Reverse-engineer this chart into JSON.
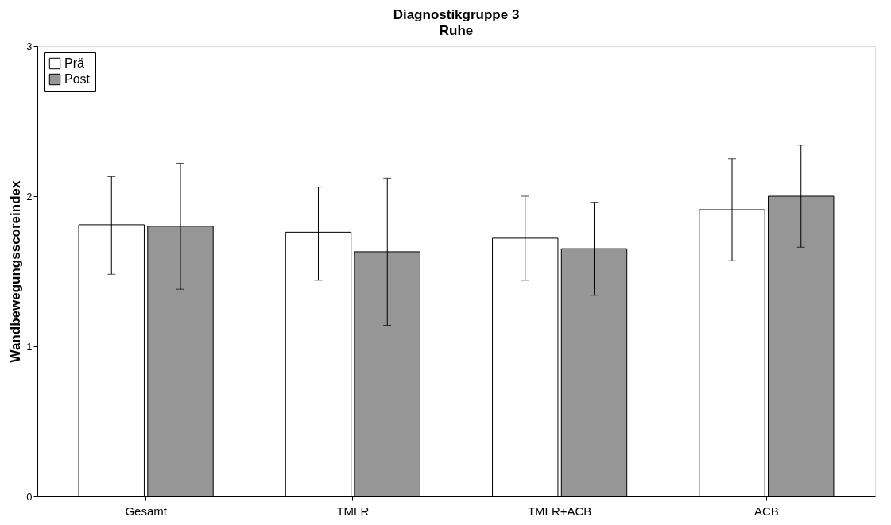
{
  "chart_data": {
    "type": "bar",
    "title": "Diagnostikgruppe 3",
    "subtitle": "Ruhe",
    "ylabel": "Wandbewegungsscoreindex",
    "categories": [
      "Gesamt",
      "TMLR",
      "TMLR+ACB",
      "ACB"
    ],
    "series": [
      {
        "name": "Prä",
        "color": "#ffffff",
        "values": [
          1.81,
          1.76,
          1.72,
          1.91
        ],
        "errors": [
          [
            1.48,
            2.13
          ],
          [
            1.44,
            2.06
          ],
          [
            1.44,
            2.0
          ],
          [
            1.57,
            2.25
          ]
        ]
      },
      {
        "name": "Post",
        "color": "#969696",
        "values": [
          1.8,
          1.63,
          1.65,
          2.0
        ],
        "errors": [
          [
            1.38,
            2.22
          ],
          [
            1.14,
            2.12
          ],
          [
            1.34,
            1.96
          ],
          [
            1.66,
            2.34
          ]
        ]
      }
    ],
    "ylim": [
      0,
      3
    ],
    "yticks": [
      0,
      1,
      2,
      3
    ],
    "grid": false,
    "legend": "top left"
  }
}
